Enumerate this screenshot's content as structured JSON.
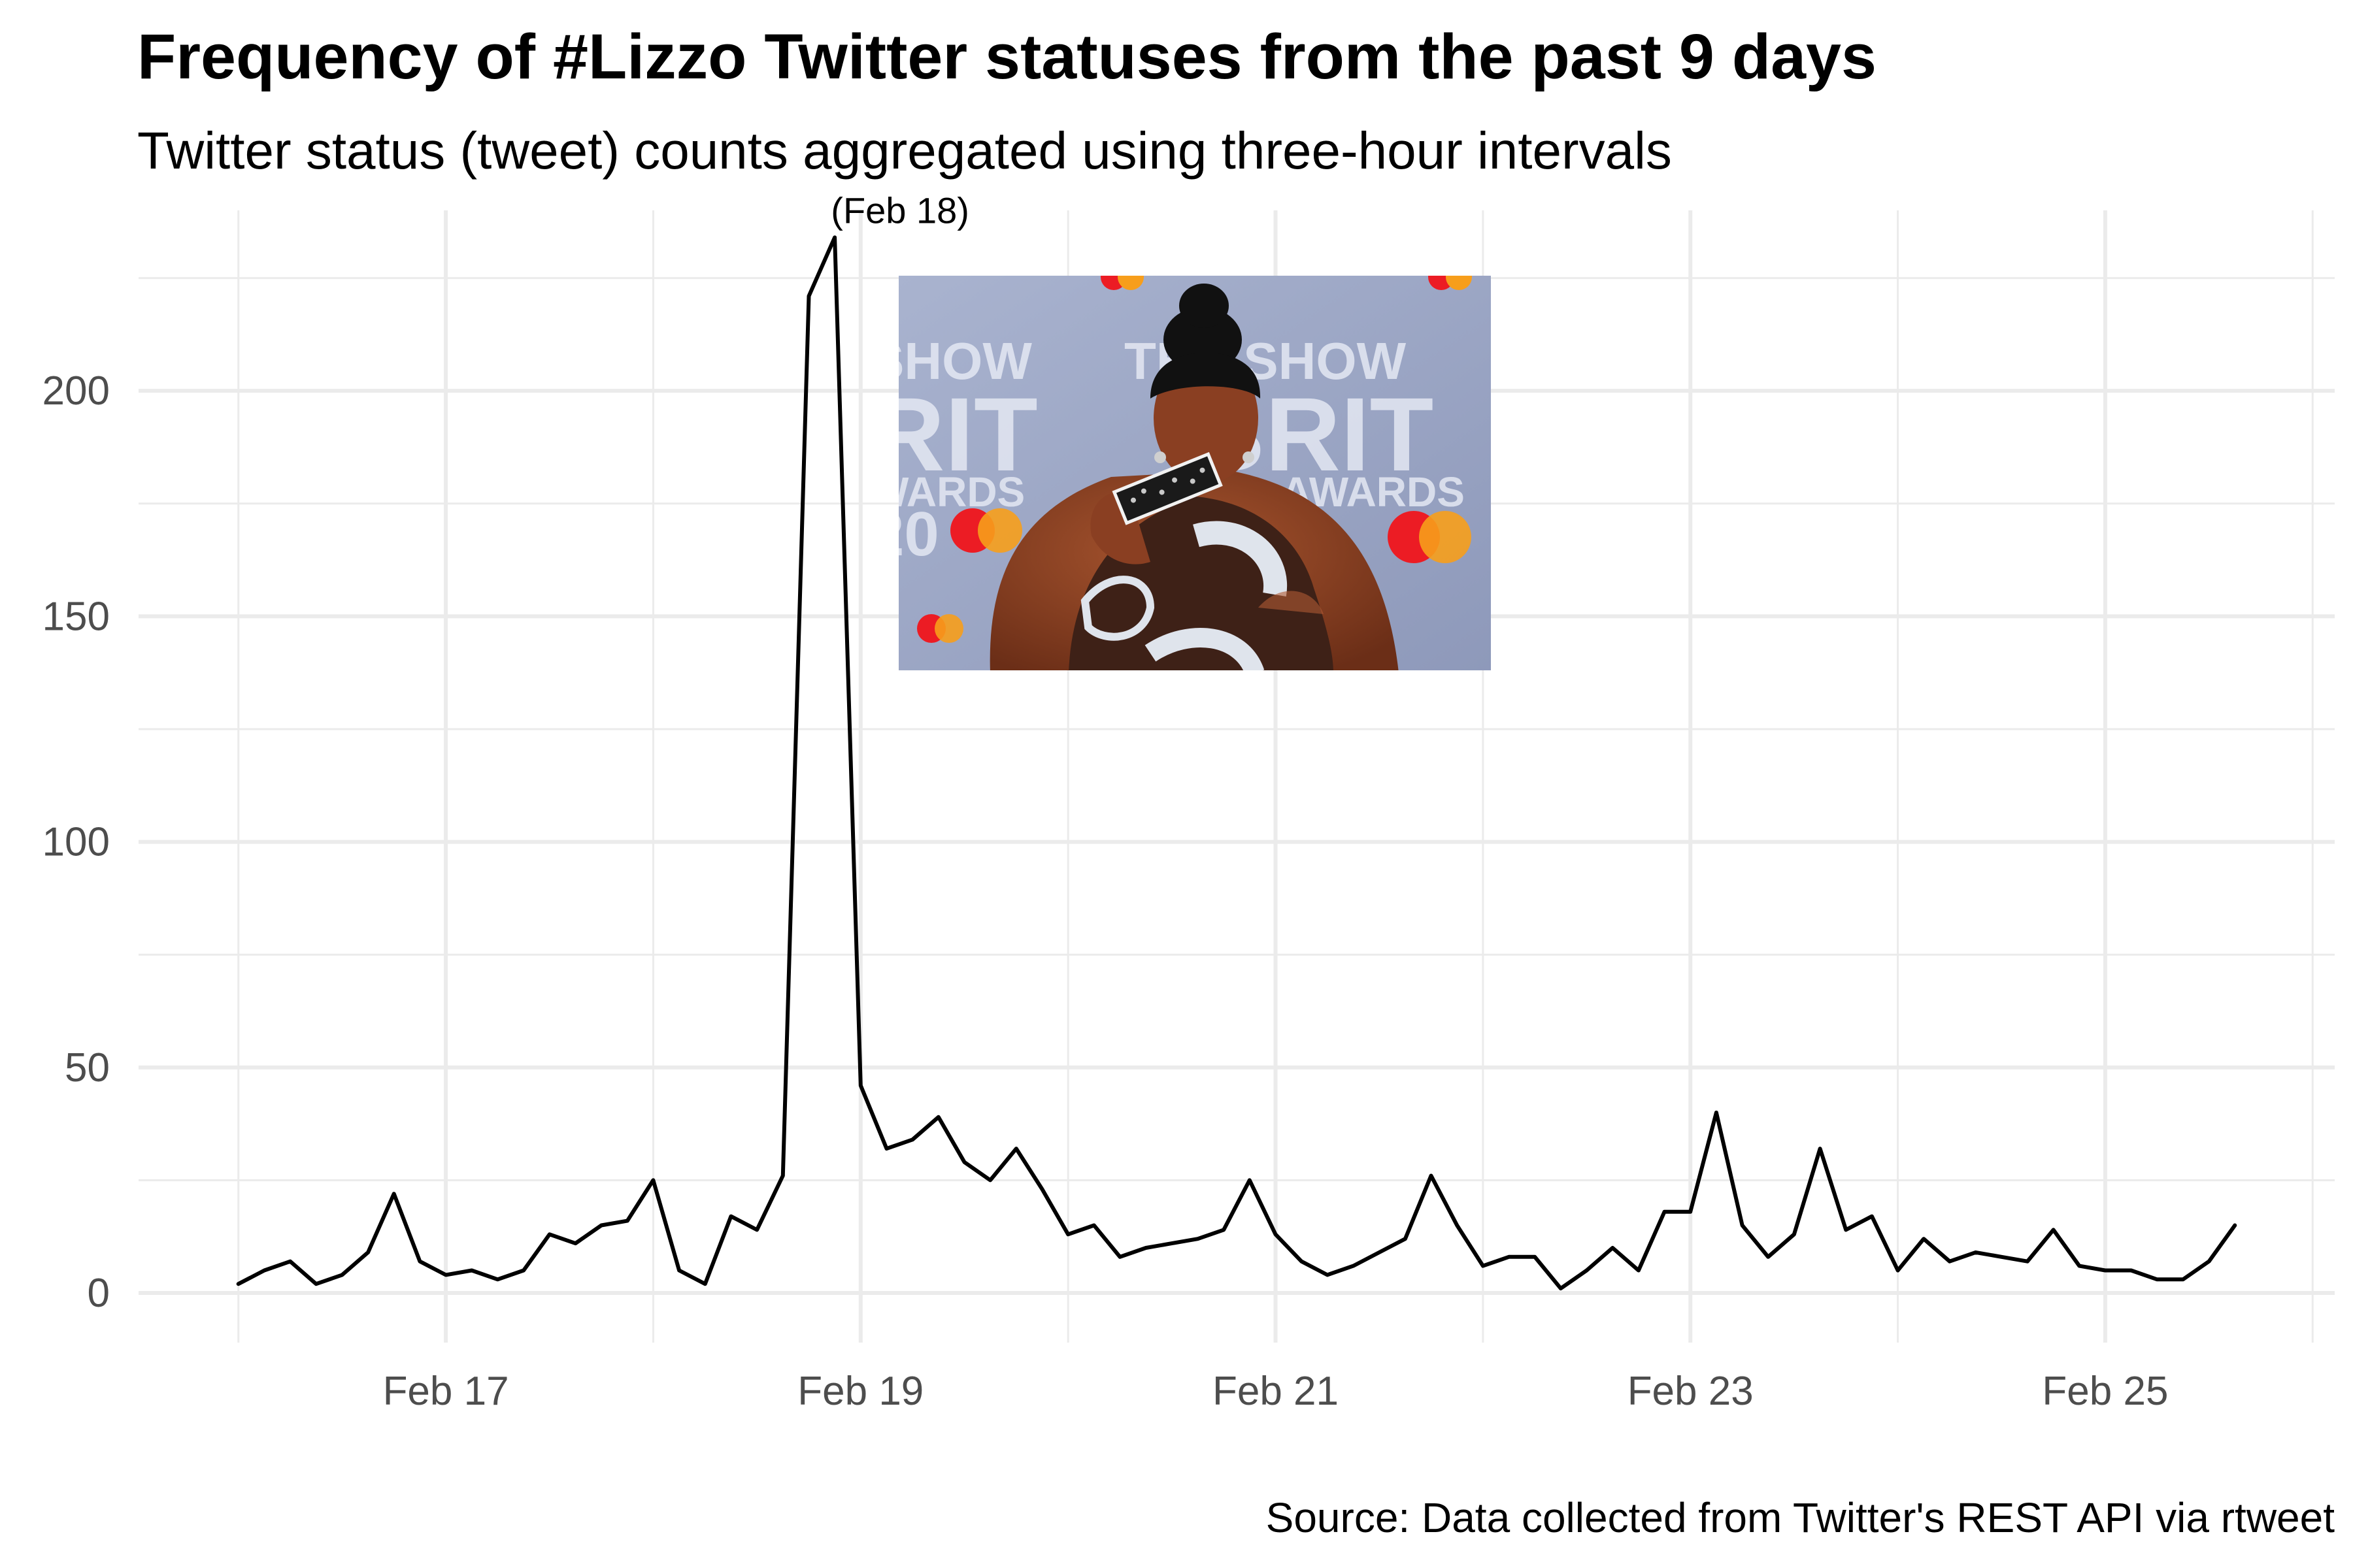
{
  "chart_data": {
    "type": "line",
    "title": "Frequency of #Lizzo Twitter statuses from the past 9 days",
    "subtitle": "Twitter status (tweet) counts aggregated using three-hour intervals",
    "caption": "Source: Data collected from Twitter's REST API via rtweet",
    "xlabel": "",
    "ylabel": "",
    "x_ticks": [
      "Feb 17",
      "Feb 19",
      "Feb 21",
      "Feb 23",
      "Feb 25"
    ],
    "y_ticks": [
      "0",
      "50",
      "100",
      "150",
      "200"
    ],
    "ylim": [
      -11,
      240
    ],
    "grid": true,
    "interval": "3 hours",
    "first_x": "2020-02-16 00:00",
    "y": [
      2,
      5,
      7,
      2,
      4,
      9,
      22,
      7,
      4,
      5,
      3,
      5,
      13,
      11,
      15,
      16,
      25,
      5,
      2,
      17,
      14,
      26,
      221,
      234,
      46,
      32,
      34,
      39,
      29,
      25,
      32,
      23,
      13,
      15,
      8,
      10,
      11,
      12,
      14,
      25,
      13,
      7,
      4,
      6,
      9,
      12,
      26,
      15,
      6,
      8,
      8,
      1,
      5,
      10,
      5,
      18,
      18,
      40,
      15,
      8,
      13,
      32,
      14,
      17,
      5,
      12,
      7,
      9,
      8,
      7,
      14,
      6,
      5,
      5,
      3,
      3,
      7,
      15
    ],
    "annotation": {
      "text": "(Feb 18)",
      "x": "2020-02-18 21:00",
      "y": 234
    },
    "inset_image": "photo of Lizzo on the red carpet at The BRIT Awards",
    "colors": {
      "line": "#000000",
      "grid": "#ebebeb",
      "tick_text": "#4d4d4d"
    }
  }
}
